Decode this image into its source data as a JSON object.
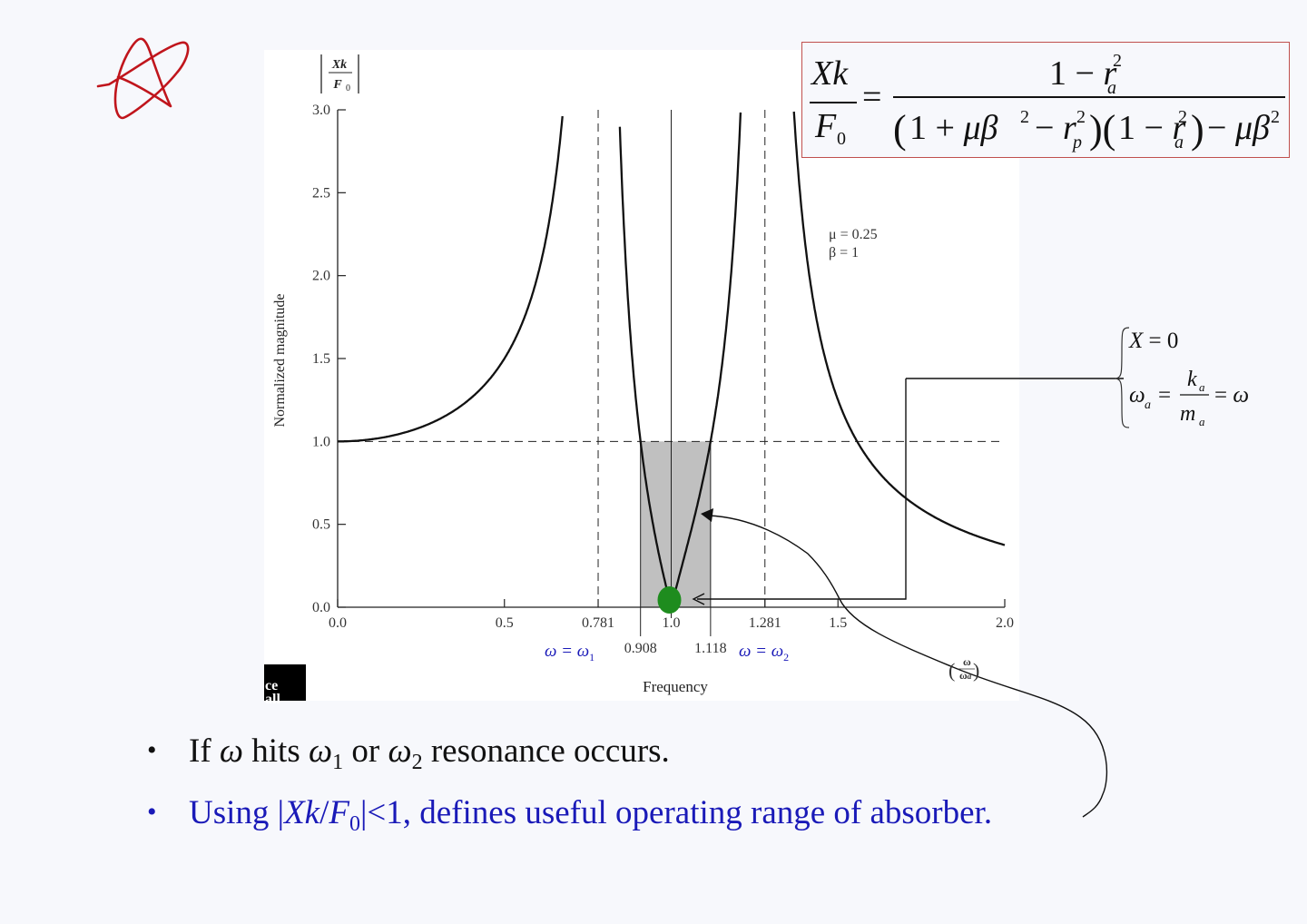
{
  "slide": {
    "background": "#f7f8fc",
    "annotation_star_color": "#c0151c"
  },
  "formula": {
    "lhs_num": "Xk",
    "lhs_den": "F",
    "lhs_den_sub": "0",
    "equals": "=",
    "rhs_num": "1 − r_a²",
    "rhs_den": "(1 + μβ² − r_p²)(1 − r_a²) − μβ²",
    "border_color": "#c0504d"
  },
  "side_note": {
    "line1": "X = 0",
    "line2_lhs": "ω_a",
    "line2_num": "k_a",
    "line2_den": "m_a",
    "line2_rhs": "= ω"
  },
  "bullets": [
    {
      "text": "If ω hits ω1 or ω2 resonance occurs.",
      "color": "#111111"
    },
    {
      "text": "Using |Xk/F0|<1, defines useful operating range of absorber.",
      "color": "#1a1ab8"
    }
  ],
  "publisher_logo": {
    "text": "ce all"
  },
  "chart_data": {
    "type": "line",
    "title": "",
    "xlabel": "Frequency",
    "xlabel_annotation": "(ω/ωa)",
    "ylabel": "Normalized magnitude",
    "ylabel_top": "|Xk/F0|",
    "xlim": [
      0.0,
      2.0
    ],
    "ylim": [
      0.0,
      3.0
    ],
    "x_ticks": [
      "0.0",
      "0.5",
      "0.781",
      "1.0",
      "1.281",
      "1.5",
      "2.0"
    ],
    "x_ticks_secondary": [
      "0.908",
      "1.118"
    ],
    "y_ticks": [
      "0.0",
      "0.5",
      "1.0",
      "1.5",
      "2.0",
      "2.5",
      "3.0"
    ],
    "parameters": {
      "mu": 0.25,
      "beta": 1,
      "label_mu": "μ = 0.25",
      "label_beta": "β = 1"
    },
    "resonances": [
      {
        "x": 0.781,
        "label": "ω = ω1",
        "style": "dashed"
      },
      {
        "x": 1.281,
        "label": "ω = ω2",
        "style": "dashed"
      }
    ],
    "useful_range": {
      "x_start": 0.908,
      "x_end": 1.118,
      "y_max": 1.0,
      "fill": "#c0c0c0"
    },
    "reference_line": {
      "y": 1.0,
      "style": "dashed"
    },
    "center_line": {
      "x": 1.0
    },
    "highlight_point": {
      "x": 1.0,
      "y": 0.0,
      "color": "#1e8c1e"
    },
    "series": [
      {
        "name": "|Xk/F0|",
        "x": [
          0.0,
          0.2,
          0.4,
          0.5,
          0.6,
          0.7,
          0.75,
          0.908,
          0.95,
          1.0,
          1.05,
          1.118,
          1.35,
          1.4,
          1.5,
          1.6,
          1.7,
          1.8,
          1.9,
          2.0
        ],
        "values": [
          1.0,
          1.04,
          1.21,
          1.4,
          1.76,
          2.56,
          3.0,
          1.0,
          0.52,
          0.0,
          0.53,
          1.0,
          3.0,
          2.06,
          1.18,
          0.84,
          0.65,
          0.53,
          0.44,
          0.37
        ]
      }
    ]
  }
}
